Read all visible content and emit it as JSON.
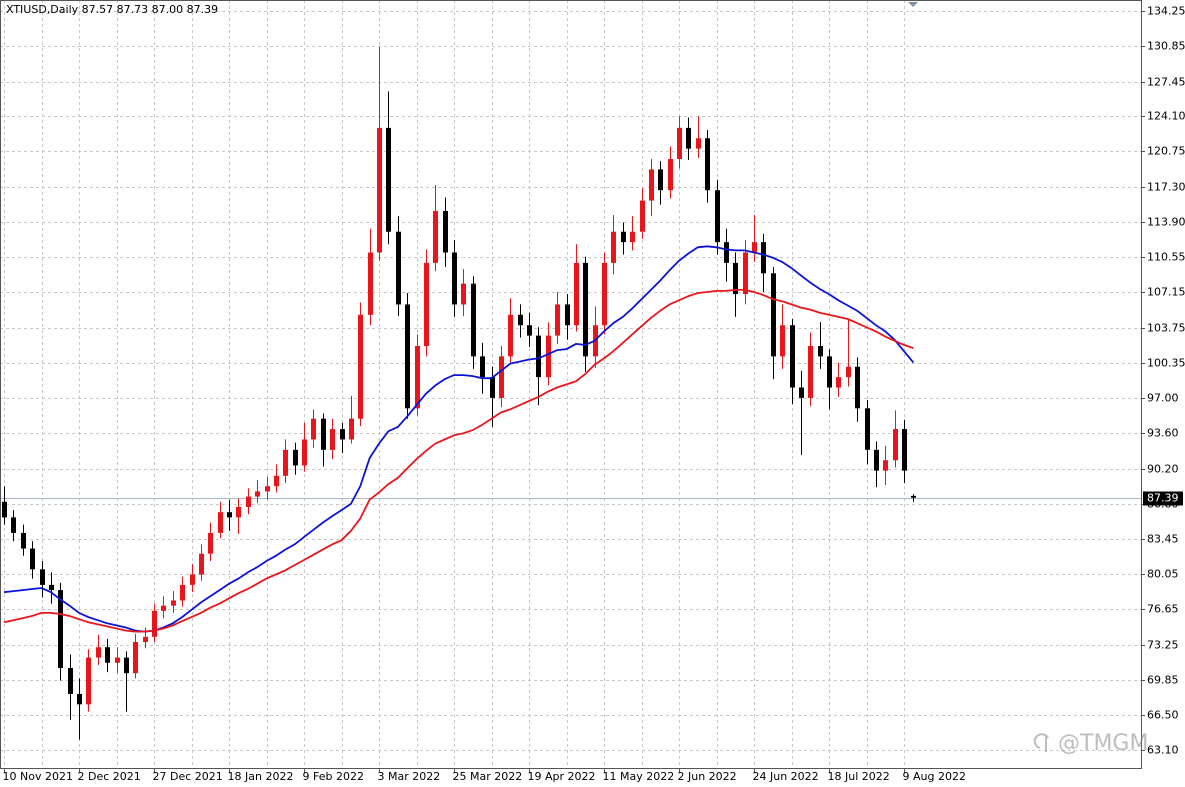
{
  "chart_data": {
    "type": "candlestick",
    "title": "XTIUSD,Daily  87.57 87.73 87.00 87.39",
    "categories": [
      "10 Nov 2021",
      null,
      null,
      null,
      null,
      null,
      null,
      null,
      "2 Dec 2021",
      null,
      null,
      null,
      null,
      null,
      null,
      null,
      "27 Dec 2021",
      null,
      null,
      null,
      null,
      null,
      null,
      null,
      "18 Jan 2022",
      null,
      null,
      null,
      null,
      null,
      null,
      null,
      "9 Feb 2022",
      null,
      null,
      null,
      null,
      null,
      null,
      null,
      "3 Mar 2022",
      null,
      null,
      null,
      null,
      null,
      null,
      null,
      "25 Mar 2022",
      null,
      null,
      null,
      null,
      null,
      null,
      null,
      "19 Apr 2022",
      null,
      null,
      null,
      null,
      null,
      null,
      null,
      "11 May 2022",
      null,
      null,
      null,
      null,
      null,
      null,
      null,
      "2 Jun 2022",
      null,
      null,
      null,
      null,
      null,
      null,
      null,
      "24 Jun 2022",
      null,
      null,
      null,
      null,
      null,
      null,
      null,
      "18 Jul 2022",
      null,
      null,
      null,
      null,
      null,
      null,
      null,
      "9 Aug 2022",
      null
    ],
    "open": [
      87,
      85.5,
      84,
      82.5,
      80.5,
      79,
      78.5,
      71,
      68.5,
      67.5,
      72,
      73,
      71.5,
      72,
      70.5,
      73.5,
      74,
      76.5,
      77,
      77.5,
      79,
      80,
      82,
      84,
      86,
      85.5,
      86.5,
      87.5,
      88,
      88.5,
      89.5,
      92,
      90.5,
      93,
      95,
      92,
      94,
      93,
      95,
      105,
      111,
      123,
      113,
      106,
      96,
      102,
      110,
      115,
      111,
      106,
      108,
      101,
      99,
      97,
      101,
      105,
      104,
      103,
      99,
      103,
      106,
      104,
      110,
      101,
      104,
      110,
      113,
      112,
      113,
      116,
      119,
      117,
      120,
      123,
      121,
      122,
      117,
      112,
      110,
      107,
      111,
      112,
      109,
      101,
      104,
      98,
      97,
      102,
      101,
      98,
      99,
      100,
      96,
      92,
      90,
      91,
      94,
      87.57
    ],
    "high": [
      88.5,
      86.2,
      84.8,
      83.2,
      81.3,
      80.2,
      79.2,
      72.3,
      70,
      72.8,
      74.2,
      73.8,
      73,
      72.6,
      74.3,
      74.9,
      77.2,
      77.9,
      78.4,
      79.8,
      81,
      82.9,
      85,
      87,
      87.2,
      87.3,
      88.3,
      89.1,
      89.4,
      90.6,
      93,
      92.7,
      94.6,
      95.9,
      95.5,
      95,
      94.6,
      97.2,
      106.2,
      113.3,
      130.8,
      126.5,
      114.5,
      107.1,
      103.1,
      111.3,
      117.5,
      116.3,
      112.2,
      109.4,
      108.7,
      102.3,
      100,
      102,
      106.6,
      106,
      105.2,
      103.8,
      104.3,
      107.2,
      107,
      111.8,
      110.6,
      105.8,
      111,
      114.6,
      113.9,
      114.5,
      117.2,
      120,
      119.8,
      121.2,
      124.1,
      124,
      124.1,
      122.8,
      118,
      113.3,
      111,
      112.2,
      114.6,
      112.8,
      109.6,
      106,
      104.6,
      99.6,
      103.3,
      104.3,
      101.7,
      100.4,
      104.6,
      100.9,
      96.8,
      92.8,
      92.4,
      95.8,
      94.9,
      87.73
    ],
    "low": [
      84.8,
      83.2,
      81.8,
      79.6,
      77.8,
      77.2,
      69.8,
      66,
      64.1,
      66.8,
      71.3,
      70.6,
      70.5,
      66.8,
      70,
      72.9,
      73.5,
      75.8,
      76.3,
      76.9,
      78.3,
      79.4,
      81.3,
      83.5,
      84.2,
      83.9,
      85.8,
      86.9,
      87.2,
      87.9,
      88.8,
      89.6,
      89.9,
      92.2,
      90.4,
      91.1,
      91.7,
      92.6,
      94.3,
      104,
      110.2,
      111.8,
      104.9,
      95,
      95.3,
      101,
      109.2,
      109.6,
      104.8,
      104.9,
      99.8,
      97.4,
      94.2,
      96.1,
      100.2,
      102.8,
      101.9,
      96.3,
      98.2,
      102.2,
      102.6,
      103.4,
      99.5,
      99.9,
      103.1,
      108.9,
      110.8,
      111.2,
      112.3,
      114.5,
      115.6,
      116.2,
      119.1,
      119.9,
      120.1,
      115.8,
      110.8,
      108.2,
      104.8,
      106,
      110.1,
      107.2,
      98.8,
      99.8,
      96.4,
      91.5,
      96.2,
      99.8,
      95.9,
      97.1,
      98.1,
      94.7,
      90.6,
      88.4,
      88.6,
      90.3,
      88.8,
      87
    ],
    "close": [
      85.5,
      84,
      82.5,
      80.5,
      79,
      78.5,
      71,
      68.5,
      67.5,
      72,
      73,
      71.5,
      72,
      70.5,
      73.5,
      74,
      76.5,
      77,
      77.5,
      79,
      80,
      82,
      84,
      86,
      85.5,
      86.5,
      87.5,
      88,
      88.5,
      89.5,
      92,
      90.5,
      93,
      95,
      92,
      94,
      93,
      95,
      105,
      111,
      123,
      113,
      106,
      96,
      102,
      110,
      115,
      111,
      106,
      108,
      101,
      99,
      97,
      101,
      105,
      104,
      103,
      99,
      103,
      106,
      104,
      110,
      101,
      104,
      110,
      113,
      112,
      113,
      116,
      119,
      117,
      120,
      123,
      121,
      122,
      117,
      112,
      110,
      107,
      111,
      112,
      109,
      101,
      104,
      98,
      97,
      102,
      101,
      98,
      99,
      100,
      96,
      92,
      90,
      91,
      94,
      90,
      87.39
    ],
    "up_color": "#e8161b",
    "down_color": "#000000",
    "overlays": [
      {
        "color": "#0a14d8",
        "values": [
          78.3,
          78.4,
          78.5,
          78.6,
          78.7,
          78.3,
          77.6,
          77,
          76.3,
          75.9,
          75.6,
          75.3,
          75.1,
          74.9,
          74.6,
          74.5,
          74.6,
          74.9,
          75.3,
          75.9,
          76.6,
          77.3,
          77.9,
          78.5,
          79.1,
          79.6,
          80.2,
          80.7,
          81.3,
          81.8,
          82.4,
          82.9,
          83.6,
          84.3,
          85,
          85.6,
          86.2,
          86.8,
          88.5,
          91.2,
          92.6,
          93.8,
          94.2,
          95.2,
          96.3,
          97.4,
          98.2,
          98.8,
          99.2,
          99.2,
          99.1,
          98.9,
          98.9,
          99.6,
          100.3,
          100.5,
          100.7,
          100.8,
          101.2,
          101.6,
          101.7,
          102.2,
          102.1,
          102.5,
          103.4,
          104.2,
          104.8,
          105.6,
          106.5,
          107.4,
          108.3,
          109.3,
          110.2,
          110.9,
          111.5,
          111.6,
          111.5,
          111.3,
          111.2,
          111.2,
          111,
          110.8,
          110.5,
          110.1,
          109.5,
          108.8,
          108.1,
          107.5,
          107,
          106.4,
          105.9,
          105.4,
          104.7,
          104,
          103.4,
          102.6,
          101.5,
          100.4
        ]
      },
      {
        "color": "#e8161b",
        "values": [
          75.4,
          75.6,
          75.8,
          76,
          76.3,
          76.3,
          76.2,
          76,
          75.7,
          75.4,
          75.2,
          75,
          74.8,
          74.6,
          74.5,
          74.5,
          74.6,
          74.8,
          75.1,
          75.5,
          75.9,
          76.3,
          76.8,
          77.2,
          77.7,
          78.2,
          78.6,
          79.1,
          79.6,
          80,
          80.4,
          80.9,
          81.4,
          81.9,
          82.4,
          82.9,
          83.3,
          84.2,
          85.4,
          87.2,
          87.9,
          88.7,
          89.3,
          90.2,
          91.1,
          91.9,
          92.6,
          93,
          93.4,
          93.6,
          93.9,
          94.4,
          95,
          95.6,
          95.9,
          96.3,
          96.7,
          97.1,
          97.6,
          98,
          98.3,
          98.6,
          99.3,
          100.2,
          100.8,
          101.5,
          102.3,
          103.1,
          103.9,
          104.7,
          105.4,
          106,
          106.4,
          106.8,
          107.1,
          107.2,
          107.3,
          107.3,
          107.4,
          107.4,
          107.2,
          106.9,
          106.5,
          106.3,
          106,
          105.7,
          105.5,
          105.2,
          105,
          104.8,
          104.6,
          104.2,
          103.8,
          103.4,
          102.9,
          102.5,
          102.1,
          101.8
        ]
      }
    ],
    "ylim": [
      61.37,
      135.31
    ],
    "yticks": [
      134.25,
      130.85,
      127.45,
      {
        "value": 124.1,
        "label": "124.10"
      },
      120.75,
      {
        "value": 117.3,
        "label": "117.30"
      },
      {
        "value": 113.9,
        "label": "113.90"
      },
      110.55,
      107.15,
      103.75,
      100.35,
      {
        "value": 97,
        "label": "97.00"
      },
      {
        "value": 93.6,
        "label": "93.60"
      },
      {
        "value": 90.2,
        "label": "90.20"
      },
      {
        "value": 86.8,
        "label": "86.80"
      },
      83.45,
      80.05,
      76.65,
      73.25,
      69.85,
      {
        "value": 66.5,
        "label": "66.50"
      },
      {
        "value": 63.1,
        "label": "63.10"
      }
    ],
    "grid": true,
    "last_price": 87.39,
    "watermark": "@TMGM"
  }
}
